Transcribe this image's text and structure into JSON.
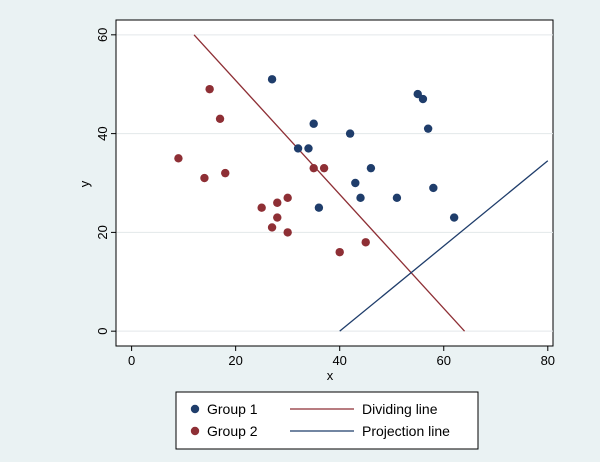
{
  "chart_data": {
    "type": "scatter",
    "xlabel": "x",
    "ylabel": "y",
    "xlim": [
      -3,
      81
    ],
    "ylim": [
      -3,
      63
    ],
    "x_ticks": [
      0,
      20,
      40,
      60,
      80
    ],
    "y_ticks": [
      0,
      20,
      40,
      60
    ],
    "grid": "horizontal",
    "legend_position": "bottom",
    "series": [
      {
        "name": "Group 1",
        "kind": "points",
        "color": "#1f3d6b",
        "points": [
          [
            27,
            51
          ],
          [
            32,
            37
          ],
          [
            34,
            37
          ],
          [
            35,
            42
          ],
          [
            36,
            25
          ],
          [
            42,
            40
          ],
          [
            43,
            30
          ],
          [
            44,
            27
          ],
          [
            46,
            33
          ],
          [
            51,
            27
          ],
          [
            55,
            48
          ],
          [
            56,
            47
          ],
          [
            57,
            41
          ],
          [
            58,
            29
          ],
          [
            62,
            23
          ]
        ]
      },
      {
        "name": "Group 2",
        "kind": "points",
        "color": "#8e2f35",
        "points": [
          [
            9,
            35
          ],
          [
            14,
            31
          ],
          [
            15,
            49
          ],
          [
            17,
            43
          ],
          [
            18,
            32
          ],
          [
            25,
            25
          ],
          [
            27,
            21
          ],
          [
            28,
            26
          ],
          [
            28,
            23
          ],
          [
            30,
            27
          ],
          [
            30,
            20
          ],
          [
            35,
            33
          ],
          [
            37,
            33
          ],
          [
            40,
            16
          ],
          [
            45,
            18
          ]
        ]
      },
      {
        "name": "Dividing line",
        "kind": "line",
        "color": "#8e2f35",
        "points": [
          [
            12,
            60
          ],
          [
            64,
            0
          ]
        ]
      },
      {
        "name": "Projection line",
        "kind": "line",
        "color": "#1f3d6b",
        "points": [
          [
            40,
            0
          ],
          [
            80,
            34.5
          ]
        ]
      }
    ]
  }
}
